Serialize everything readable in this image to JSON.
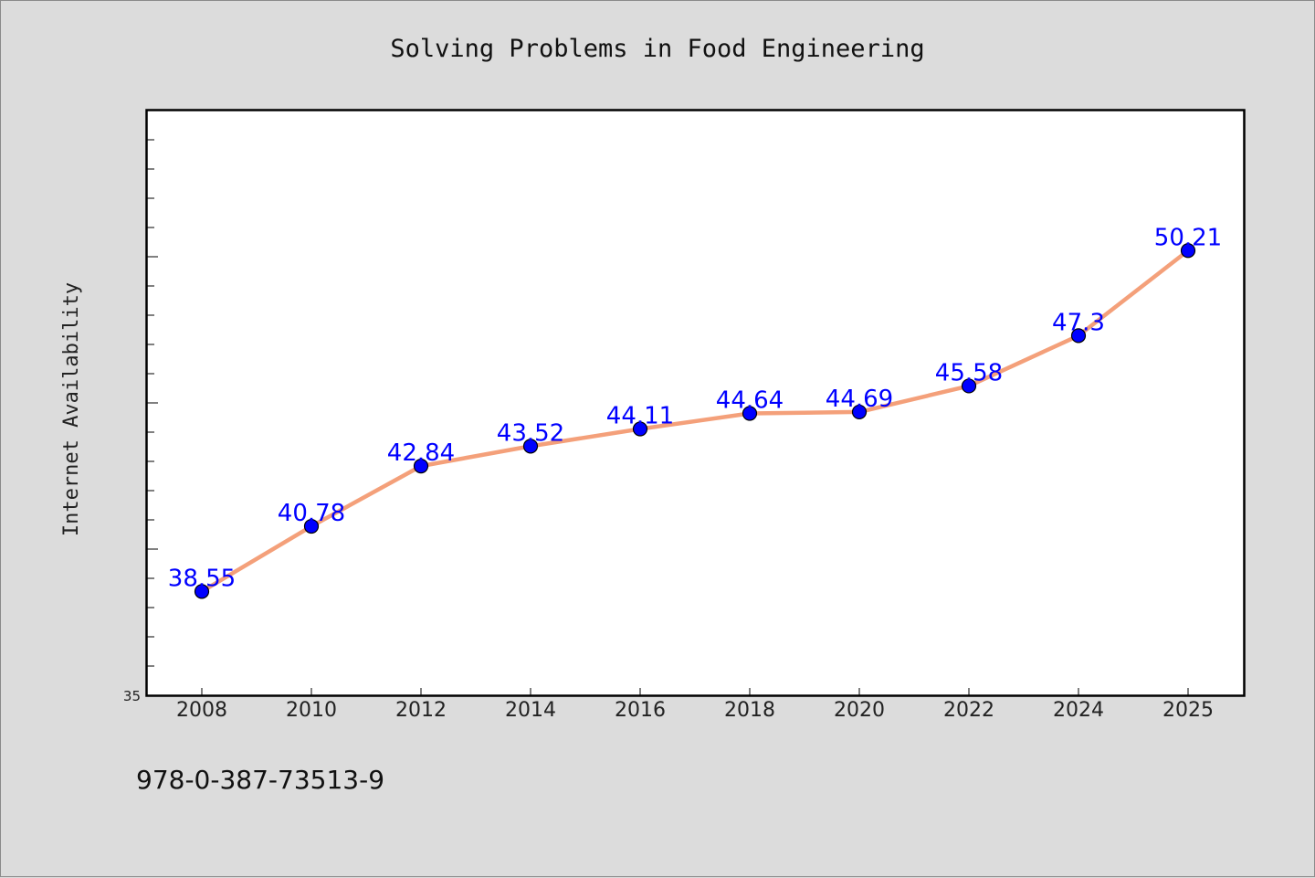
{
  "chart_data": {
    "type": "line",
    "title": "Solving Problems in Food Engineering",
    "xlabel": "",
    "ylabel": "Internet Availability",
    "x": [
      "2008",
      "2010",
      "2012",
      "2014",
      "2016",
      "2018",
      "2020",
      "2022",
      "2024",
      "2025"
    ],
    "series": [
      {
        "values": [
          38.55,
          40.78,
          42.84,
          43.52,
          44.11,
          44.64,
          44.69,
          45.58,
          47.3,
          50.21
        ],
        "data_labels": [
          "38.55",
          "40.78",
          "42.84",
          "43.52",
          "44.11",
          "44.64",
          "44.69",
          "45.58",
          "47.3",
          "50.21"
        ],
        "line_color": "#f4a07a",
        "marker_color": "#0000ff"
      }
    ],
    "ylim": [
      35,
      55
    ],
    "y_tick_labels": [
      "35"
    ],
    "grid": false,
    "legend": "none"
  },
  "footer": {
    "isbn": "978-0-387-73513-9"
  },
  "colors": {
    "background": "#dcdcdc",
    "plot_background": "#ffffff",
    "data_label": "#0000ff"
  }
}
